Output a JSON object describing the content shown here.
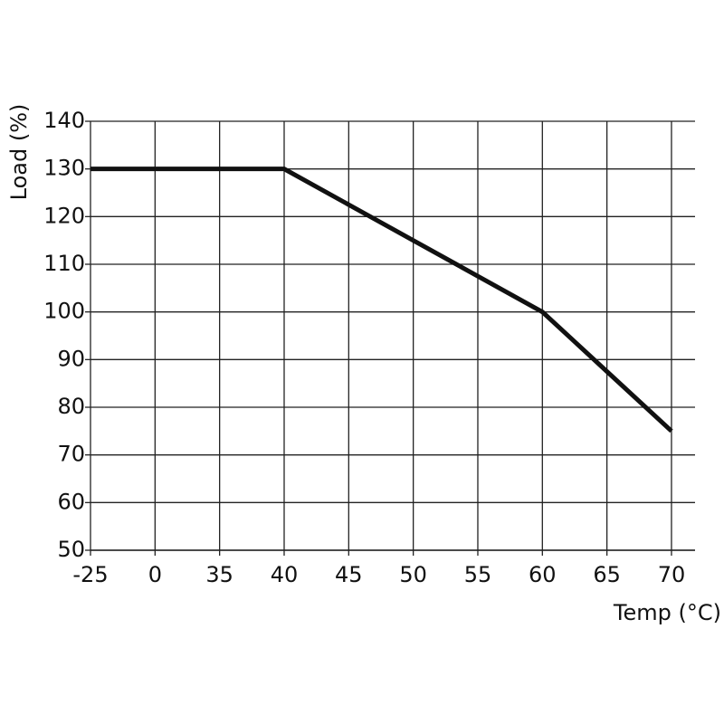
{
  "chart_data": {
    "type": "line",
    "x_label": "Temp (°C)",
    "y_label": "Load (%)",
    "categories": [
      "-25",
      "0",
      "35",
      "40",
      "45",
      "50",
      "55",
      "60",
      "65",
      "70"
    ],
    "series": [
      {
        "color": "#111111",
        "values": [
          130,
          130,
          130,
          130,
          122.5,
          115,
          107.5,
          100,
          87.5,
          75
        ]
      }
    ],
    "ylim": [
      50,
      140
    ],
    "yticks": [
      50,
      60,
      70,
      80,
      90,
      100,
      110,
      120,
      130,
      140
    ],
    "grid": true
  }
}
